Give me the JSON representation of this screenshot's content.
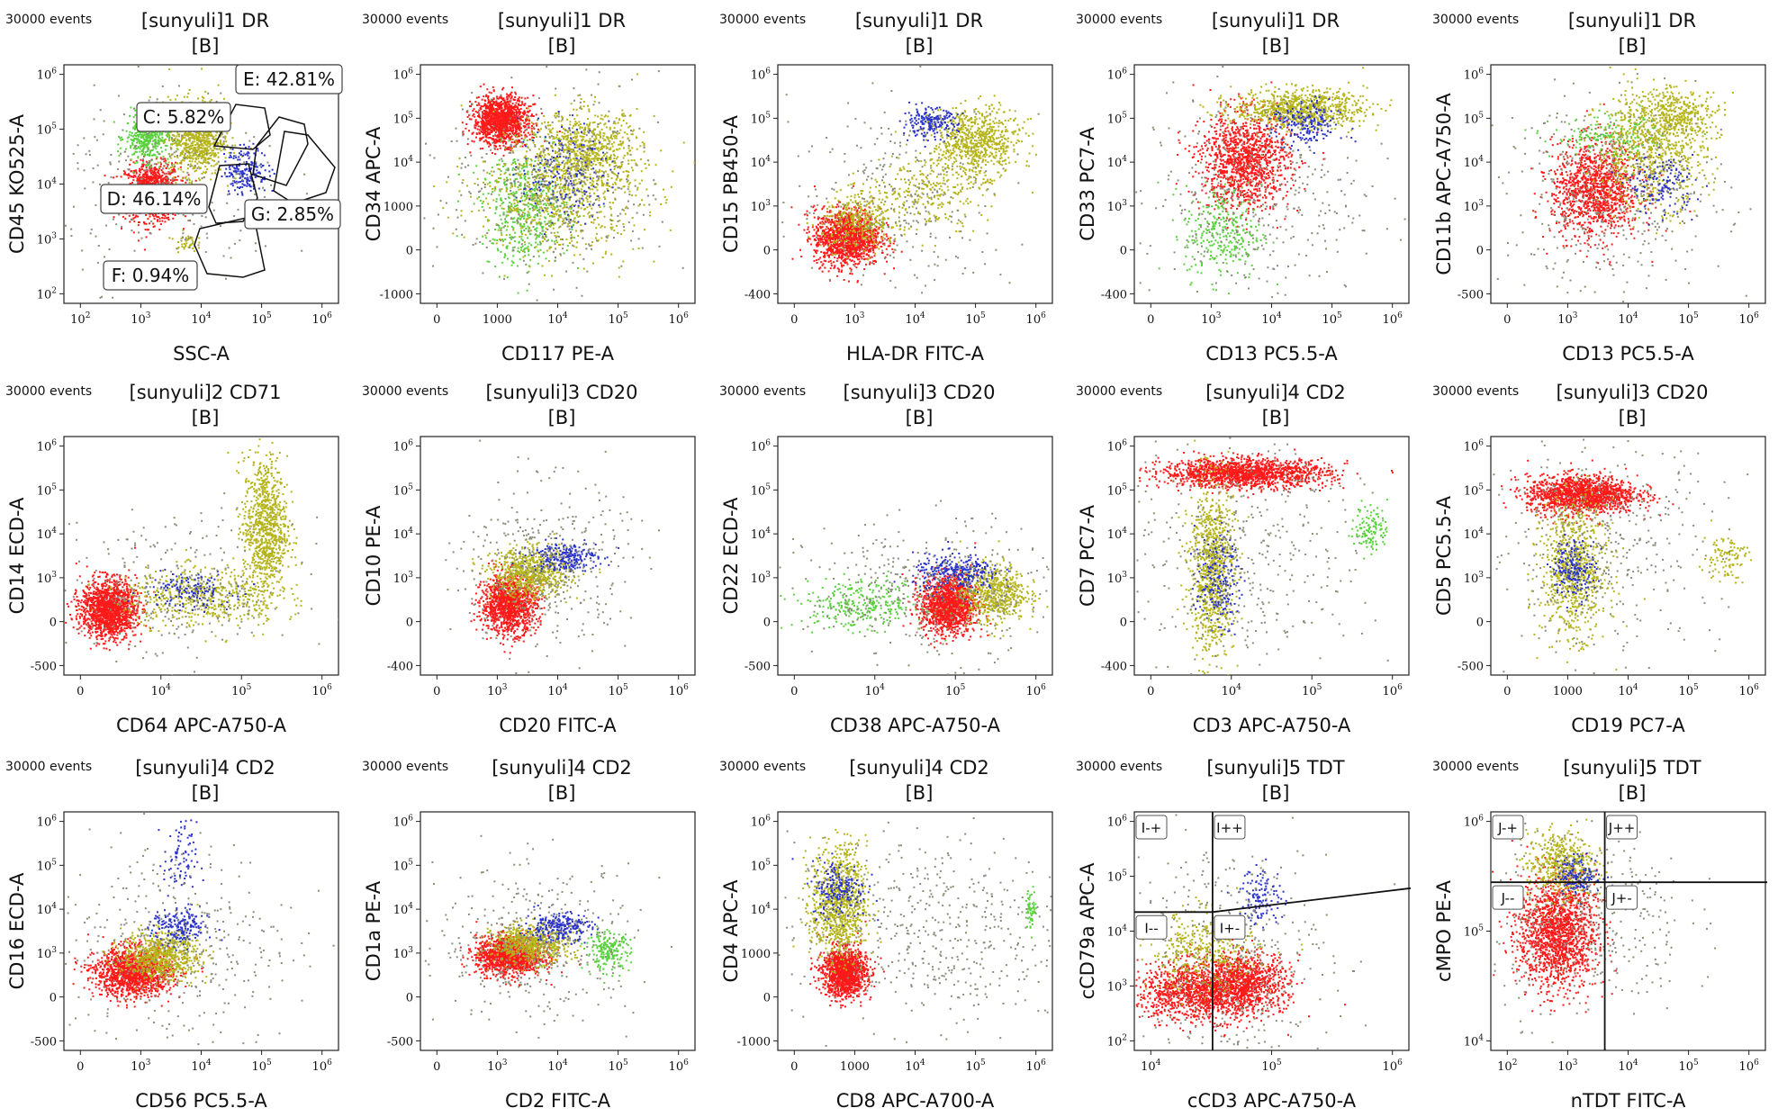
{
  "figure": {
    "panel_label_events": "30000 events",
    "colors": {
      "red": "#ff1a1a",
      "green": "#59d13d",
      "blue": "#2b34c9",
      "olive": "#b5b41a",
      "grey": "#8c8c7a",
      "axis": "#222222"
    }
  },
  "chart_data": [
    {
      "type": "scatter",
      "events": "30000 events",
      "title": "[sunyuli]1 DR",
      "subtitle": "[B]",
      "xlabel": "SSC-A",
      "ylabel": "CD45 KO525-A",
      "xticks": [
        "10^2",
        "10^3",
        "10^4",
        "10^5",
        "10^6"
      ],
      "yticks": [
        "10^2",
        "10^3",
        "10^4",
        "10^5",
        "10^6"
      ],
      "gates": [
        {
          "label": "E: 42.81%",
          "percent": 42.81
        },
        {
          "label": "C: 5.82%",
          "percent": 5.82
        },
        {
          "label": "D: 46.14%",
          "percent": 46.14
        },
        {
          "label": "G: 2.85%",
          "percent": 2.85
        },
        {
          "label": "F: 0.94%",
          "percent": 0.94
        }
      ],
      "pops": [
        {
          "c": "red",
          "x": 0.32,
          "y": 0.47,
          "sx": 0.05,
          "sy": 0.06,
          "n": 1100
        },
        {
          "c": "green",
          "x": 0.3,
          "y": 0.7,
          "sx": 0.04,
          "sy": 0.05,
          "n": 450
        },
        {
          "c": "olive",
          "x": 0.48,
          "y": 0.7,
          "sx": 0.05,
          "sy": 0.08,
          "n": 800
        },
        {
          "c": "blue",
          "x": 0.66,
          "y": 0.56,
          "sx": 0.04,
          "sy": 0.05,
          "n": 200
        },
        {
          "c": "olive",
          "x": 0.44,
          "y": 0.26,
          "sx": 0.02,
          "sy": 0.02,
          "n": 40
        },
        {
          "c": "grey",
          "x": 0.4,
          "y": 0.5,
          "sx": 0.2,
          "sy": 0.2,
          "n": 300
        }
      ]
    },
    {
      "type": "scatter",
      "events": "30000 events",
      "title": "[sunyuli]1 DR",
      "subtitle": "[B]",
      "xlabel": "CD117 PE-A",
      "ylabel": "CD34 APC-A",
      "xticks": [
        "0",
        "1000",
        "10^4",
        "10^5",
        "10^6"
      ],
      "yticks": [
        "-1000",
        "0",
        "1000",
        "10^4",
        "10^5",
        "10^6"
      ],
      "pops": [
        {
          "c": "red",
          "x": 0.29,
          "y": 0.77,
          "sx": 0.05,
          "sy": 0.05,
          "n": 1300
        },
        {
          "c": "olive",
          "x": 0.6,
          "y": 0.65,
          "sx": 0.1,
          "sy": 0.08,
          "n": 700
        },
        {
          "c": "green",
          "x": 0.38,
          "y": 0.4,
          "sx": 0.08,
          "sy": 0.12,
          "n": 500
        },
        {
          "c": "olive",
          "x": 0.5,
          "y": 0.45,
          "sx": 0.15,
          "sy": 0.12,
          "n": 700
        },
        {
          "c": "blue",
          "x": 0.52,
          "y": 0.55,
          "sx": 0.08,
          "sy": 0.1,
          "n": 200
        },
        {
          "c": "grey",
          "x": 0.48,
          "y": 0.5,
          "sx": 0.2,
          "sy": 0.2,
          "n": 400
        }
      ]
    },
    {
      "type": "scatter",
      "events": "30000 events",
      "title": "[sunyuli]1 DR",
      "subtitle": "[B]",
      "xlabel": "HLA-DR FITC-A",
      "ylabel": "CD15 PB450-A",
      "xticks": [
        "0",
        "10^3",
        "10^4",
        "10^5",
        "10^6"
      ],
      "yticks": [
        "-400",
        "0",
        "10^3",
        "10^4",
        "10^5",
        "10^6"
      ],
      "pops": [
        {
          "c": "red",
          "x": 0.25,
          "y": 0.28,
          "sx": 0.06,
          "sy": 0.06,
          "n": 1300
        },
        {
          "c": "olive",
          "x": 0.3,
          "y": 0.35,
          "sx": 0.07,
          "sy": 0.06,
          "n": 350
        },
        {
          "c": "olive",
          "x": 0.72,
          "y": 0.68,
          "sx": 0.08,
          "sy": 0.07,
          "n": 700
        },
        {
          "c": "olive",
          "x": 0.55,
          "y": 0.48,
          "sx": 0.1,
          "sy": 0.08,
          "n": 250
        },
        {
          "c": "blue",
          "x": 0.55,
          "y": 0.76,
          "sx": 0.05,
          "sy": 0.03,
          "n": 200
        },
        {
          "c": "grey",
          "x": 0.45,
          "y": 0.45,
          "sx": 0.2,
          "sy": 0.2,
          "n": 300
        }
      ]
    },
    {
      "type": "scatter",
      "events": "30000 events",
      "title": "[sunyuli]1 DR",
      "subtitle": "[B]",
      "xlabel": "CD13 PC5.5-A",
      "ylabel": "CD33 PC7-A",
      "xticks": [
        "0",
        "10^3",
        "10^4",
        "10^5",
        "10^6"
      ],
      "yticks": [
        "-400",
        "0",
        "10^3",
        "10^4",
        "10^5",
        "10^6"
      ],
      "pops": [
        {
          "c": "red",
          "x": 0.4,
          "y": 0.6,
          "sx": 0.08,
          "sy": 0.1,
          "n": 1200
        },
        {
          "c": "olive",
          "x": 0.6,
          "y": 0.82,
          "sx": 0.12,
          "sy": 0.04,
          "n": 800
        },
        {
          "c": "blue",
          "x": 0.62,
          "y": 0.75,
          "sx": 0.06,
          "sy": 0.05,
          "n": 200
        },
        {
          "c": "green",
          "x": 0.32,
          "y": 0.3,
          "sx": 0.07,
          "sy": 0.1,
          "n": 300
        },
        {
          "c": "grey",
          "x": 0.42,
          "y": 0.45,
          "sx": 0.2,
          "sy": 0.22,
          "n": 400
        }
      ]
    },
    {
      "type": "scatter",
      "events": "30000 events",
      "title": "[sunyuli]1 DR",
      "subtitle": "[B]",
      "xlabel": "CD13 PC5.5-A",
      "ylabel": "CD11b APC-A750-A",
      "xticks": [
        "0",
        "10^3",
        "10^4",
        "10^5",
        "10^6"
      ],
      "yticks": [
        "-500",
        "0",
        "10^3",
        "10^4",
        "10^5",
        "10^6"
      ],
      "pops": [
        {
          "c": "red",
          "x": 0.38,
          "y": 0.48,
          "sx": 0.08,
          "sy": 0.1,
          "n": 1200
        },
        {
          "c": "olive",
          "x": 0.58,
          "y": 0.65,
          "sx": 0.1,
          "sy": 0.12,
          "n": 800
        },
        {
          "c": "olive",
          "x": 0.68,
          "y": 0.8,
          "sx": 0.08,
          "sy": 0.05,
          "n": 300
        },
        {
          "c": "blue",
          "x": 0.62,
          "y": 0.5,
          "sx": 0.06,
          "sy": 0.06,
          "n": 150
        },
        {
          "c": "green",
          "x": 0.42,
          "y": 0.7,
          "sx": 0.1,
          "sy": 0.04,
          "n": 150
        },
        {
          "c": "grey",
          "x": 0.45,
          "y": 0.45,
          "sx": 0.2,
          "sy": 0.2,
          "n": 400
        }
      ]
    },
    {
      "type": "scatter",
      "events": "30000 events",
      "title": "[sunyuli]2 CD71",
      "subtitle": "[B]",
      "xlabel": "CD64 APC-A750-A",
      "ylabel": "CD14 ECD-A",
      "xticks": [
        "0",
        "10^4",
        "10^5",
        "10^6"
      ],
      "yticks": [
        "-500",
        "0",
        "10^3",
        "10^4",
        "10^5",
        "10^6"
      ],
      "pops": [
        {
          "c": "red",
          "x": 0.16,
          "y": 0.28,
          "sx": 0.05,
          "sy": 0.06,
          "n": 1500
        },
        {
          "c": "olive",
          "x": 0.73,
          "y": 0.62,
          "sx": 0.04,
          "sy": 0.15,
          "n": 900
        },
        {
          "c": "olive",
          "x": 0.5,
          "y": 0.33,
          "sx": 0.14,
          "sy": 0.06,
          "n": 500
        },
        {
          "c": "blue",
          "x": 0.45,
          "y": 0.36,
          "sx": 0.08,
          "sy": 0.04,
          "n": 150
        },
        {
          "c": "grey",
          "x": 0.4,
          "y": 0.35,
          "sx": 0.22,
          "sy": 0.15,
          "n": 300
        }
      ]
    },
    {
      "type": "scatter",
      "events": "30000 events",
      "title": "[sunyuli]3 CD20",
      "subtitle": "[B]",
      "xlabel": "CD20 FITC-A",
      "ylabel": "CD10 PE-A",
      "xticks": [
        "0",
        "10^3",
        "10^4",
        "10^5",
        "10^6"
      ],
      "yticks": [
        "-400",
        "0",
        "10^3",
        "10^4",
        "10^5",
        "10^6"
      ],
      "pops": [
        {
          "c": "red",
          "x": 0.32,
          "y": 0.3,
          "sx": 0.05,
          "sy": 0.06,
          "n": 1200
        },
        {
          "c": "olive",
          "x": 0.4,
          "y": 0.43,
          "sx": 0.07,
          "sy": 0.05,
          "n": 700
        },
        {
          "c": "blue",
          "x": 0.52,
          "y": 0.5,
          "sx": 0.06,
          "sy": 0.03,
          "n": 250
        },
        {
          "c": "grey",
          "x": 0.45,
          "y": 0.45,
          "sx": 0.15,
          "sy": 0.18,
          "n": 400
        }
      ]
    },
    {
      "type": "scatter",
      "events": "30000 events",
      "title": "[sunyuli]3 CD20",
      "subtitle": "[B]",
      "xlabel": "CD38 APC-A750-A",
      "ylabel": "CD22 ECD-A",
      "xticks": [
        "0",
        "10^4",
        "10^5",
        "10^6"
      ],
      "yticks": [
        "-500",
        "0",
        "10^3",
        "10^4",
        "10^5",
        "10^6"
      ],
      "pops": [
        {
          "c": "red",
          "x": 0.62,
          "y": 0.3,
          "sx": 0.05,
          "sy": 0.06,
          "n": 1400
        },
        {
          "c": "olive",
          "x": 0.78,
          "y": 0.35,
          "sx": 0.06,
          "sy": 0.06,
          "n": 600
        },
        {
          "c": "blue",
          "x": 0.65,
          "y": 0.43,
          "sx": 0.08,
          "sy": 0.04,
          "n": 300
        },
        {
          "c": "green",
          "x": 0.3,
          "y": 0.3,
          "sx": 0.12,
          "sy": 0.05,
          "n": 300
        },
        {
          "c": "grey",
          "x": 0.55,
          "y": 0.35,
          "sx": 0.22,
          "sy": 0.14,
          "n": 400
        }
      ]
    },
    {
      "type": "scatter",
      "events": "30000 events",
      "title": "[sunyuli]4 CD2",
      "subtitle": "[B]",
      "xlabel": "CD3 APC-A750-A",
      "ylabel": "CD7 PC7-A",
      "xticks": [
        "0",
        "10^4",
        "10^5",
        "10^6"
      ],
      "yticks": [
        "-400",
        "0",
        "10^3",
        "10^4",
        "10^5",
        "10^6"
      ],
      "pops": [
        {
          "c": "red",
          "x": 0.4,
          "y": 0.85,
          "sx": 0.15,
          "sy": 0.03,
          "n": 1500
        },
        {
          "c": "olive",
          "x": 0.28,
          "y": 0.45,
          "sx": 0.04,
          "sy": 0.18,
          "n": 900
        },
        {
          "c": "blue",
          "x": 0.3,
          "y": 0.4,
          "sx": 0.04,
          "sy": 0.1,
          "n": 200
        },
        {
          "c": "green",
          "x": 0.86,
          "y": 0.62,
          "sx": 0.03,
          "sy": 0.05,
          "n": 120
        },
        {
          "c": "grey",
          "x": 0.4,
          "y": 0.5,
          "sx": 0.22,
          "sy": 0.25,
          "n": 400
        }
      ]
    },
    {
      "type": "scatter",
      "events": "30000 events",
      "title": "[sunyuli]3 CD20",
      "subtitle": "[B]",
      "xlabel": "CD19 PC7-A",
      "ylabel": "CD5 PC5.5-A",
      "xticks": [
        "0",
        "1000",
        "10^4",
        "10^5",
        "10^6"
      ],
      "yticks": [
        "-500",
        "0",
        "10^3",
        "10^4",
        "10^5",
        "10^6"
      ],
      "pops": [
        {
          "c": "red",
          "x": 0.33,
          "y": 0.76,
          "sx": 0.1,
          "sy": 0.04,
          "n": 1400
        },
        {
          "c": "olive",
          "x": 0.3,
          "y": 0.45,
          "sx": 0.06,
          "sy": 0.14,
          "n": 800
        },
        {
          "c": "blue",
          "x": 0.3,
          "y": 0.45,
          "sx": 0.04,
          "sy": 0.06,
          "n": 200
        },
        {
          "c": "olive",
          "x": 0.85,
          "y": 0.5,
          "sx": 0.04,
          "sy": 0.05,
          "n": 100
        },
        {
          "c": "grey",
          "x": 0.4,
          "y": 0.55,
          "sx": 0.22,
          "sy": 0.22,
          "n": 400
        }
      ]
    },
    {
      "type": "scatter",
      "events": "30000 events",
      "title": "[sunyuli]4 CD2",
      "subtitle": "[B]",
      "xlabel": "CD56 PC5.5-A",
      "ylabel": "CD16 ECD-A",
      "xticks": [
        "0",
        "10^3",
        "10^4",
        "10^5",
        "10^6"
      ],
      "yticks": [
        "-500",
        "0",
        "10^3",
        "10^4",
        "10^5",
        "10^6"
      ],
      "pops": [
        {
          "c": "red",
          "x": 0.25,
          "y": 0.33,
          "sx": 0.07,
          "sy": 0.05,
          "n": 1400
        },
        {
          "c": "olive",
          "x": 0.35,
          "y": 0.4,
          "sx": 0.07,
          "sy": 0.05,
          "n": 700
        },
        {
          "c": "blue",
          "x": 0.42,
          "y": 0.52,
          "sx": 0.05,
          "sy": 0.04,
          "n": 200
        },
        {
          "c": "blue",
          "x": 0.42,
          "y": 0.8,
          "sx": 0.03,
          "sy": 0.08,
          "n": 80
        },
        {
          "c": "grey",
          "x": 0.4,
          "y": 0.45,
          "sx": 0.22,
          "sy": 0.22,
          "n": 400
        }
      ]
    },
    {
      "type": "scatter",
      "events": "30000 events",
      "title": "[sunyuli]4 CD2",
      "subtitle": "[B]",
      "xlabel": "CD2 FITC-A",
      "ylabel": "CD1a PE-A",
      "xticks": [
        "0",
        "10^3",
        "10^4",
        "10^5",
        "10^6"
      ],
      "yticks": [
        "-500",
        "0",
        "10^3",
        "10^4",
        "10^5",
        "10^6"
      ],
      "pops": [
        {
          "c": "red",
          "x": 0.32,
          "y": 0.4,
          "sx": 0.06,
          "sy": 0.04,
          "n": 1300
        },
        {
          "c": "olive",
          "x": 0.4,
          "y": 0.45,
          "sx": 0.07,
          "sy": 0.04,
          "n": 600
        },
        {
          "c": "blue",
          "x": 0.5,
          "y": 0.52,
          "sx": 0.06,
          "sy": 0.03,
          "n": 250
        },
        {
          "c": "green",
          "x": 0.68,
          "y": 0.42,
          "sx": 0.04,
          "sy": 0.04,
          "n": 200
        },
        {
          "c": "grey",
          "x": 0.42,
          "y": 0.45,
          "sx": 0.18,
          "sy": 0.16,
          "n": 400
        }
      ]
    },
    {
      "type": "scatter",
      "events": "30000 events",
      "title": "[sunyuli]4 CD2",
      "subtitle": "[B]",
      "xlabel": "CD8 APC-A700-A",
      "ylabel": "CD4 APC-A",
      "xticks": [
        "0",
        "1000",
        "10^4",
        "10^5",
        "10^6"
      ],
      "yticks": [
        "-1000",
        "0",
        "1000",
        "10^4",
        "10^5",
        "10^6"
      ],
      "pops": [
        {
          "c": "red",
          "x": 0.24,
          "y": 0.33,
          "sx": 0.04,
          "sy": 0.05,
          "n": 1300
        },
        {
          "c": "olive",
          "x": 0.22,
          "y": 0.62,
          "sx": 0.05,
          "sy": 0.12,
          "n": 900
        },
        {
          "c": "blue",
          "x": 0.22,
          "y": 0.68,
          "sx": 0.05,
          "sy": 0.06,
          "n": 200
        },
        {
          "c": "grey",
          "x": 0.55,
          "y": 0.5,
          "sx": 0.25,
          "sy": 0.2,
          "n": 500
        },
        {
          "c": "green",
          "x": 0.92,
          "y": 0.6,
          "sx": 0.01,
          "sy": 0.04,
          "n": 60
        }
      ]
    },
    {
      "type": "scatter",
      "events": "30000 events",
      "title": "[sunyuli]5 TDT",
      "subtitle": "[B]",
      "xlabel": "cCD3 APC-A750-A",
      "ylabel": "cCD79a APC-A",
      "xticks": [
        "10^4",
        "10^5",
        "10^6"
      ],
      "yticks": [
        "10^2",
        "10^3",
        "10^4",
        "10^5",
        "10^6"
      ],
      "quadrants": [
        "I-+",
        "I++",
        "I--",
        "I+-"
      ],
      "pops": [
        {
          "c": "red",
          "x": 0.25,
          "y": 0.25,
          "sx": 0.12,
          "sy": 0.06,
          "n": 1400
        },
        {
          "c": "red",
          "x": 0.4,
          "y": 0.3,
          "sx": 0.08,
          "sy": 0.06,
          "n": 700
        },
        {
          "c": "olive",
          "x": 0.25,
          "y": 0.42,
          "sx": 0.1,
          "sy": 0.08,
          "n": 400
        },
        {
          "c": "blue",
          "x": 0.46,
          "y": 0.65,
          "sx": 0.04,
          "sy": 0.06,
          "n": 120
        },
        {
          "c": "grey",
          "x": 0.35,
          "y": 0.4,
          "sx": 0.18,
          "sy": 0.25,
          "n": 400
        }
      ]
    },
    {
      "type": "scatter",
      "events": "30000 events",
      "title": "[sunyuli]5 TDT",
      "subtitle": "[B]",
      "xlabel": "nTDT FITC-A",
      "ylabel": "cMPO PE-A",
      "xticks": [
        "10^2",
        "10^3",
        "10^4",
        "10^5",
        "10^6"
      ],
      "yticks": [
        "10^4",
        "10^5",
        "10^6"
      ],
      "quadrants": [
        "J-+",
        "J++",
        "J--",
        "J+-"
      ],
      "pops": [
        {
          "c": "red",
          "x": 0.24,
          "y": 0.5,
          "sx": 0.07,
          "sy": 0.12,
          "n": 1600
        },
        {
          "c": "olive",
          "x": 0.25,
          "y": 0.78,
          "sx": 0.06,
          "sy": 0.07,
          "n": 500
        },
        {
          "c": "blue",
          "x": 0.32,
          "y": 0.74,
          "sx": 0.04,
          "sy": 0.04,
          "n": 150
        },
        {
          "c": "grey",
          "x": 0.35,
          "y": 0.55,
          "sx": 0.18,
          "sy": 0.2,
          "n": 400
        }
      ]
    }
  ]
}
